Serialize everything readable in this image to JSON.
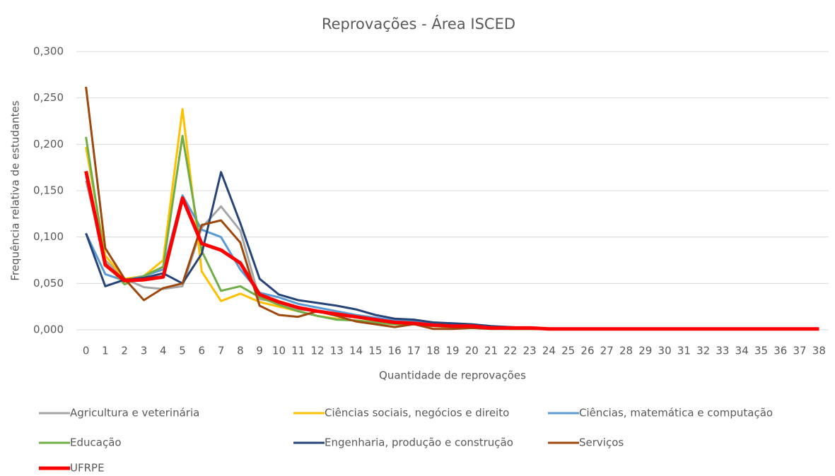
{
  "chart_data": {
    "type": "line",
    "title": "Reprovações - Área ISCED",
    "x_label": "Quantidade de reprovações",
    "y_label": "Frequência relativa de estudantes",
    "categories": [
      "0",
      "1",
      "2",
      "3",
      "4",
      "5",
      "6",
      "7",
      "8",
      "9",
      "10",
      "11",
      "12",
      "13",
      "14",
      "15",
      "16",
      "17",
      "18",
      "19",
      "20",
      "21",
      "22",
      "23",
      "24",
      "25",
      "26",
      "27",
      "28",
      "29",
      "30",
      "31",
      "32",
      "33",
      "34",
      "35",
      "36",
      "37",
      "38"
    ],
    "ylim": [
      0,
      0.3
    ],
    "yticks": [
      {
        "value": 0,
        "label": "0,000"
      },
      {
        "value": 0.05,
        "label": "0,050"
      },
      {
        "value": 0.1,
        "label": "0,100"
      },
      {
        "value": 0.15,
        "label": "0,150"
      },
      {
        "value": 0.2,
        "label": "0,200"
      },
      {
        "value": 0.25,
        "label": "0,250"
      },
      {
        "value": 0.3,
        "label": "0,300"
      }
    ],
    "grid": true,
    "legend": "bottom",
    "series": [
      {
        "name": "Agricultura e veterinária",
        "color": "#a5a5a5",
        "line_width": 3,
        "values": [
          0.161,
          0.075,
          0.055,
          0.046,
          0.044,
          0.047,
          0.11,
          0.133,
          0.107,
          0.033,
          0.03,
          0.022,
          0.02,
          0.018,
          0.015,
          0.012,
          0.008,
          0.008,
          0.005,
          0.004,
          0.004,
          0.003,
          0.002,
          0.002,
          0.001,
          0.001,
          0.001,
          0.001,
          0.001,
          0.001,
          0.001,
          0.001,
          0.001,
          0.001,
          0.001,
          0.001,
          0.001,
          0.001,
          0.001
        ]
      },
      {
        "name": "Ciências sociais, negócios e direito",
        "color": "#ffc000",
        "line_width": 3,
        "values": [
          0.197,
          0.08,
          0.055,
          0.058,
          0.075,
          0.238,
          0.063,
          0.031,
          0.039,
          0.03,
          0.025,
          0.02,
          0.015,
          0.012,
          0.01,
          0.008,
          0.006,
          0.006,
          0.004,
          0.003,
          0.003,
          0.002,
          0.001,
          0.001,
          0.001,
          0.001,
          0.001,
          0.001,
          0.001,
          0.001,
          0.001,
          0.001,
          0.001,
          0.001,
          0.001,
          0.001,
          0.001,
          0.001,
          0.001
        ]
      },
      {
        "name": "Ciências, matemática e computação",
        "color": "#5b9bd5",
        "line_width": 3,
        "values": [
          0.104,
          0.06,
          0.053,
          0.058,
          0.065,
          0.145,
          0.108,
          0.1,
          0.065,
          0.04,
          0.035,
          0.028,
          0.024,
          0.02,
          0.016,
          0.013,
          0.01,
          0.009,
          0.007,
          0.005,
          0.005,
          0.003,
          0.002,
          0.002,
          0.001,
          0.001,
          0.001,
          0.001,
          0.001,
          0.001,
          0.001,
          0.001,
          0.001,
          0.001,
          0.001,
          0.001,
          0.001,
          0.001,
          0.001
        ]
      },
      {
        "name": "Educação",
        "color": "#70ad47",
        "line_width": 3,
        "values": [
          0.208,
          0.072,
          0.049,
          0.058,
          0.068,
          0.209,
          0.085,
          0.042,
          0.047,
          0.035,
          0.027,
          0.02,
          0.015,
          0.011,
          0.01,
          0.008,
          0.006,
          0.006,
          0.004,
          0.003,
          0.003,
          0.002,
          0.001,
          0.001,
          0.001,
          0.001,
          0.001,
          0.001,
          0.001,
          0.001,
          0.001,
          0.001,
          0.001,
          0.001,
          0.001,
          0.001,
          0.001,
          0.001,
          0.001
        ]
      },
      {
        "name": "Engenharia, produção e construção",
        "color": "#264478",
        "line_width": 3,
        "values": [
          0.104,
          0.047,
          0.054,
          0.056,
          0.061,
          0.05,
          0.082,
          0.17,
          0.115,
          0.055,
          0.038,
          0.032,
          0.029,
          0.026,
          0.022,
          0.016,
          0.012,
          0.011,
          0.008,
          0.007,
          0.006,
          0.004,
          0.003,
          0.002,
          0.001,
          0.001,
          0.001,
          0.001,
          0.001,
          0.001,
          0.001,
          0.001,
          0.001,
          0.001,
          0.001,
          0.001,
          0.001,
          0.001,
          0.001
        ]
      },
      {
        "name": "Serviços",
        "color": "#9e480e",
        "line_width": 3,
        "values": [
          0.262,
          0.088,
          0.055,
          0.032,
          0.045,
          0.05,
          0.113,
          0.118,
          0.094,
          0.026,
          0.016,
          0.014,
          0.02,
          0.015,
          0.009,
          0.006,
          0.003,
          0.006,
          0.001,
          0.001,
          0.002,
          0.001,
          0.001,
          0.001,
          0.001,
          0.001,
          0.001,
          0.001,
          0.001,
          0.001,
          0.001,
          0.001,
          0.001,
          0.001,
          0.001,
          0.001,
          0.001,
          0.001,
          0.001
        ]
      },
      {
        "name": "UFRPE",
        "color": "#ff0000",
        "line_width": 5,
        "values": [
          0.171,
          0.07,
          0.053,
          0.054,
          0.057,
          0.142,
          0.093,
          0.086,
          0.072,
          0.038,
          0.03,
          0.024,
          0.02,
          0.017,
          0.014,
          0.011,
          0.008,
          0.007,
          0.005,
          0.004,
          0.004,
          0.002,
          0.002,
          0.002,
          0.001,
          0.001,
          0.001,
          0.001,
          0.001,
          0.001,
          0.001,
          0.001,
          0.001,
          0.001,
          0.001,
          0.001,
          0.001,
          0.001,
          0.001
        ]
      }
    ]
  }
}
